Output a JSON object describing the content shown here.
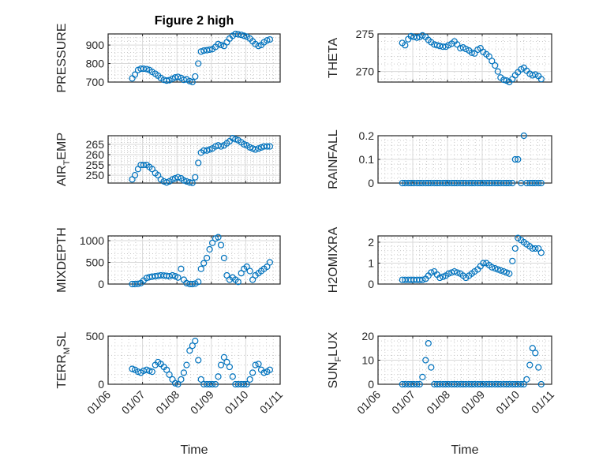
{
  "figure_title": "Figure 2 high",
  "colors": {
    "marker": "#0072BD",
    "axis": "#262626",
    "grid": "#d9d9d9"
  },
  "chart_data": {
    "type": "scatter",
    "x_unit": "day (mm/dd tick labels)",
    "x_range": [
      6,
      11
    ],
    "x_ticks": [
      6,
      7,
      8,
      9,
      10,
      11
    ],
    "x_tick_labels": [
      "01/06",
      "01/07",
      "01/08",
      "01/09",
      "01/10",
      "01/11"
    ],
    "xlabel": "Time",
    "x": [
      6.7,
      6.78,
      6.87,
      6.95,
      7.03,
      7.12,
      7.2,
      7.28,
      7.37,
      7.45,
      7.53,
      7.62,
      7.7,
      7.78,
      7.87,
      7.95,
      8.03,
      8.12,
      8.2,
      8.28,
      8.37,
      8.45,
      8.53,
      8.62,
      8.7,
      8.78,
      8.87,
      8.95,
      9.03,
      9.12,
      9.2,
      9.28,
      9.37,
      9.45,
      9.53,
      9.62,
      9.7,
      9.78,
      9.87,
      9.95,
      10.03,
      10.12,
      10.2,
      10.28,
      10.37,
      10.45,
      10.53,
      10.62,
      10.7
    ],
    "panels": [
      {
        "ylabel": "PRESSURE",
        "ylim": [
          700,
          960
        ],
        "yticks": [
          700,
          800,
          900
        ],
        "ytick_labels": [
          "700",
          "800",
          "900"
        ],
        "values": [
          720,
          740,
          765,
          772,
          772,
          770,
          765,
          755,
          745,
          735,
          722,
          712,
          708,
          710,
          718,
          725,
          728,
          722,
          712,
          715,
          705,
          700,
          730,
          800,
          865,
          870,
          872,
          875,
          878,
          890,
          905,
          900,
          895,
          915,
          935,
          950,
          960,
          958,
          955,
          950,
          945,
          935,
          920,
          905,
          895,
          900,
          915,
          925,
          930
        ]
      },
      {
        "ylabel": "THETA",
        "ylim": [
          268.6,
          275
        ],
        "yticks": [
          270,
          275
        ],
        "ytick_labels": [
          "270",
          "275"
        ],
        "values": [
          273.8,
          273.5,
          274.3,
          274.7,
          274.6,
          274.5,
          274.6,
          274.8,
          274.6,
          274.2,
          273.9,
          273.6,
          273.5,
          273.4,
          273.3,
          273.3,
          273.5,
          273.7,
          274.0,
          273.6,
          273.1,
          273.2,
          273.0,
          272.8,
          272.5,
          272.4,
          272.9,
          273.1,
          272.6,
          272.3,
          272.0,
          271.4,
          270.8,
          270.0,
          269.2,
          268.9,
          268.8,
          268.6,
          269.0,
          269.5,
          269.9,
          270.3,
          270.5,
          270.1,
          269.7,
          269.5,
          269.6,
          269.4,
          269.0
        ]
      },
      {
        "ylabel": "AIR_TEMP",
        "ylim": [
          246.2,
          269.2
        ],
        "yticks": [
          250,
          255,
          260,
          265
        ],
        "ytick_labels": [
          "250",
          "255",
          "260",
          "265"
        ],
        "values": [
          248,
          250,
          253,
          255,
          255,
          255,
          254,
          253,
          251,
          250,
          248,
          247,
          246.5,
          247,
          248,
          248.5,
          249,
          248.5,
          247.5,
          247,
          246.5,
          246.3,
          249,
          256,
          261,
          262,
          262,
          262.5,
          263,
          264,
          264.5,
          264,
          264.5,
          265.5,
          266.5,
          268,
          267.5,
          267,
          266,
          265,
          264.5,
          263.5,
          263,
          262.5,
          263,
          263.5,
          264,
          264,
          264
        ]
      },
      {
        "ylabel": "RAINFALL",
        "ylim": [
          0,
          0.2
        ],
        "yticks": [
          0,
          0.1,
          0.2
        ],
        "ytick_labels": [
          "0",
          "0.1",
          "0.2"
        ],
        "values": [
          0,
          0,
          0,
          0,
          0,
          0,
          0,
          0,
          0,
          0,
          0,
          0,
          0,
          0,
          0,
          0,
          0,
          0,
          0,
          0,
          0,
          0,
          0,
          0,
          0,
          0,
          0,
          0,
          0,
          0,
          0,
          0,
          0,
          0,
          0,
          0,
          0,
          0,
          0,
          0.1,
          0.1,
          0,
          0.2,
          0,
          0,
          0,
          0,
          0,
          0
        ]
      },
      {
        "ylabel": "MIXDEPTH",
        "ylim": [
          0,
          1110
        ],
        "yticks": [
          0,
          500,
          1000
        ],
        "ytick_labels": [
          "0",
          "500",
          "1000"
        ],
        "values": [
          0,
          0,
          5,
          20,
          80,
          140,
          160,
          170,
          180,
          190,
          200,
          195,
          190,
          180,
          200,
          180,
          150,
          350,
          100,
          20,
          0,
          0,
          10,
          50,
          350,
          480,
          600,
          800,
          950,
          1050,
          1080,
          900,
          600,
          200,
          100,
          150,
          100,
          50,
          250,
          350,
          400,
          300,
          100,
          200,
          250,
          300,
          350,
          400,
          500
        ]
      },
      {
        "ylabel": "H2OMIXRA",
        "ylim": [
          0,
          2.3
        ],
        "yticks": [
          0,
          1,
          2
        ],
        "ytick_labels": [
          "0",
          "1",
          "2"
        ],
        "values": [
          0.2,
          0.2,
          0.2,
          0.2,
          0.2,
          0.2,
          0.2,
          0.2,
          0.25,
          0.4,
          0.55,
          0.6,
          0.45,
          0.3,
          0.35,
          0.4,
          0.5,
          0.55,
          0.6,
          0.55,
          0.5,
          0.4,
          0.3,
          0.4,
          0.5,
          0.6,
          0.7,
          0.85,
          1.0,
          1.0,
          0.9,
          0.8,
          0.75,
          0.7,
          0.65,
          0.6,
          0.55,
          0.5,
          1.1,
          1.7,
          2.2,
          2.1,
          2.0,
          1.9,
          1.8,
          1.7,
          1.7,
          1.7,
          1.5
        ]
      },
      {
        "ylabel": "TERR_MSL",
        "ylim": [
          0,
          500
        ],
        "yticks": [
          0,
          500
        ],
        "ytick_labels": [
          "0",
          "500"
        ],
        "values": [
          160,
          150,
          130,
          120,
          140,
          150,
          140,
          130,
          200,
          230,
          210,
          180,
          150,
          100,
          50,
          10,
          0,
          50,
          120,
          200,
          350,
          400,
          450,
          250,
          50,
          0,
          0,
          0,
          0,
          0,
          80,
          200,
          280,
          230,
          180,
          80,
          0,
          0,
          0,
          0,
          0,
          50,
          120,
          200,
          210,
          150,
          120,
          130,
          150
        ]
      },
      {
        "ylabel": "SUN_FLUX",
        "ylim": [
          0,
          20
        ],
        "yticks": [
          0,
          10,
          20
        ],
        "ytick_labels": [
          "0",
          "10",
          "20"
        ],
        "values": [
          0,
          0,
          0,
          0,
          0,
          0,
          0,
          3,
          10,
          17,
          7,
          0,
          0,
          0,
          0,
          0,
          0,
          0,
          0,
          0,
          0,
          0,
          0,
          0,
          0,
          0,
          0,
          0,
          0,
          0,
          0,
          0,
          0,
          0,
          0,
          0,
          0,
          0,
          0,
          0,
          0,
          0,
          0,
          2,
          8,
          15,
          13,
          7,
          0
        ]
      }
    ]
  }
}
